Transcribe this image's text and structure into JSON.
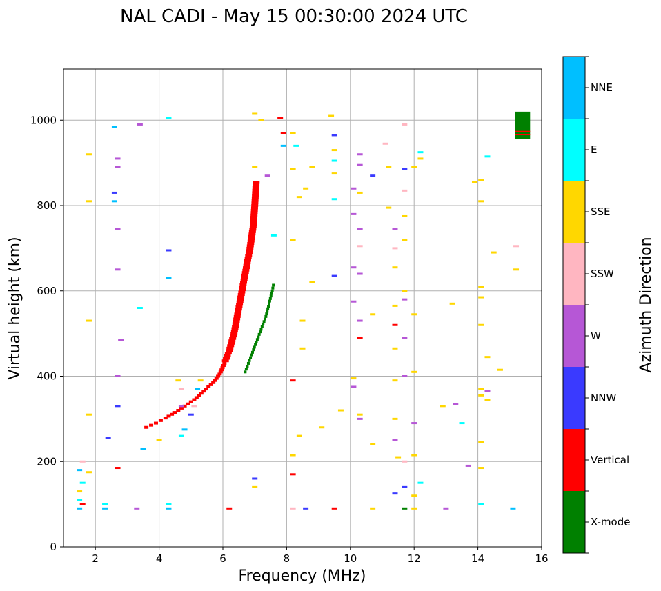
{
  "chart_data": {
    "type": "scatter",
    "title": "NAL CADI - May 15 00:30:00 2024 UTC",
    "xlabel": "Frequency (MHz)",
    "ylabel": "Virtual height (km)",
    "xlim": [
      1,
      16
    ],
    "ylim": [
      0,
      1120
    ],
    "xticks": [
      2,
      4,
      6,
      8,
      10,
      12,
      14,
      16
    ],
    "yticks": [
      0,
      200,
      400,
      600,
      800,
      1000
    ],
    "grid": true,
    "colorbar": {
      "label": "Azimuth Direction",
      "categories": [
        {
          "name": "X-mode",
          "color": "#008000"
        },
        {
          "name": "Vertical",
          "color": "#ff0000"
        },
        {
          "name": "NNW",
          "color": "#3a3aff"
        },
        {
          "name": "W",
          "color": "#b657d6"
        },
        {
          "name": "SSW",
          "color": "#ffb6c1"
        },
        {
          "name": "SSE",
          "color": "#ffd700"
        },
        {
          "name": "E",
          "color": "#00ffff"
        },
        {
          "name": "NNE",
          "color": "#00bfff"
        }
      ]
    },
    "trace_vertical": [
      [
        3.6,
        280
      ],
      [
        3.9,
        290
      ],
      [
        4.2,
        302
      ],
      [
        4.5,
        315
      ],
      [
        4.8,
        330
      ],
      [
        5.1,
        345
      ],
      [
        5.4,
        365
      ],
      [
        5.7,
        385
      ],
      [
        5.9,
        405
      ],
      [
        6.05,
        430
      ],
      [
        6.2,
        460
      ],
      [
        6.35,
        500
      ],
      [
        6.45,
        540
      ],
      [
        6.55,
        580
      ],
      [
        6.65,
        620
      ],
      [
        6.75,
        660
      ],
      [
        6.85,
        700
      ],
      [
        6.95,
        750
      ],
      [
        7.0,
        800
      ],
      [
        7.05,
        860
      ]
    ],
    "trace_xmode": [
      [
        6.7,
        410
      ],
      [
        6.9,
        450
      ],
      [
        7.05,
        480
      ],
      [
        7.2,
        510
      ],
      [
        7.35,
        540
      ],
      [
        7.45,
        570
      ],
      [
        7.55,
        600
      ],
      [
        7.6,
        620
      ]
    ],
    "scattered_points": [
      [
        1.5,
        90,
        "NNE"
      ],
      [
        1.5,
        110,
        "E"
      ],
      [
        1.5,
        130,
        "SSE"
      ],
      [
        1.6,
        150,
        "E"
      ],
      [
        1.6,
        100,
        "Vertical"
      ],
      [
        1.5,
        180,
        "NNE"
      ],
      [
        1.6,
        200,
        "SSW"
      ],
      [
        1.8,
        175,
        "SSE"
      ],
      [
        1.8,
        310,
        "SSE"
      ],
      [
        1.8,
        530,
        "SSE"
      ],
      [
        1.8,
        810,
        "SSE"
      ],
      [
        1.8,
        920,
        "SSE"
      ],
      [
        2.3,
        90,
        "NNE"
      ],
      [
        2.3,
        100,
        "E"
      ],
      [
        2.4,
        255,
        "NNW"
      ],
      [
        2.6,
        830,
        "NNW"
      ],
      [
        2.6,
        810,
        "NNE"
      ],
      [
        2.6,
        985,
        "NNE"
      ],
      [
        2.7,
        910,
        "W"
      ],
      [
        2.7,
        890,
        "W"
      ],
      [
        2.7,
        650,
        "W"
      ],
      [
        2.7,
        745,
        "W"
      ],
      [
        2.8,
        485,
        "W"
      ],
      [
        2.7,
        400,
        "W"
      ],
      [
        2.7,
        330,
        "NNW"
      ],
      [
        2.7,
        185,
        "Vertical"
      ],
      [
        3.3,
        90,
        "W"
      ],
      [
        3.4,
        560,
        "E"
      ],
      [
        3.4,
        990,
        "W"
      ],
      [
        3.5,
        230,
        "NNE"
      ],
      [
        4.0,
        250,
        "SSE"
      ],
      [
        4.3,
        100,
        "E"
      ],
      [
        4.3,
        90,
        "NNE"
      ],
      [
        4.3,
        630,
        "NNE"
      ],
      [
        4.3,
        695,
        "NNW"
      ],
      [
        4.3,
        1005,
        "E"
      ],
      [
        4.6,
        390,
        "SSE"
      ],
      [
        4.7,
        370,
        "SSW"
      ],
      [
        4.7,
        330,
        "W"
      ],
      [
        4.7,
        260,
        "E"
      ],
      [
        4.8,
        275,
        "NNE"
      ],
      [
        5.0,
        310,
        "NNW"
      ],
      [
        5.1,
        330,
        "SSW"
      ],
      [
        5.2,
        370,
        "NNE"
      ],
      [
        5.3,
        390,
        "SSE"
      ],
      [
        6.2,
        90,
        "Vertical"
      ],
      [
        7.0,
        140,
        "SSE"
      ],
      [
        7.0,
        160,
        "NNW"
      ],
      [
        7.0,
        890,
        "SSE"
      ],
      [
        7.0,
        1015,
        "SSE"
      ],
      [
        7.2,
        1000,
        "SSE"
      ],
      [
        7.4,
        870,
        "W"
      ],
      [
        7.6,
        730,
        "E"
      ],
      [
        7.8,
        1005,
        "Vertical"
      ],
      [
        7.9,
        970,
        "Vertical"
      ],
      [
        7.9,
        940,
        "NNE"
      ],
      [
        8.2,
        970,
        "SSE"
      ],
      [
        8.2,
        885,
        "SSE"
      ],
      [
        8.3,
        940,
        "E"
      ],
      [
        8.4,
        820,
        "SSE"
      ],
      [
        8.5,
        465,
        "SSE"
      ],
      [
        8.5,
        530,
        "SSE"
      ],
      [
        8.6,
        840,
        "SSE"
      ],
      [
        8.2,
        720,
        "SSE"
      ],
      [
        8.2,
        390,
        "Vertical"
      ],
      [
        8.2,
        170,
        "Vertical"
      ],
      [
        8.2,
        215,
        "SSE"
      ],
      [
        8.4,
        260,
        "SSE"
      ],
      [
        8.8,
        620,
        "SSE"
      ],
      [
        8.8,
        890,
        "SSE"
      ],
      [
        9.1,
        280,
        "SSE"
      ],
      [
        9.4,
        1010,
        "SSE"
      ],
      [
        9.5,
        965,
        "NNW"
      ],
      [
        9.5,
        930,
        "SSE"
      ],
      [
        9.5,
        905,
        "E"
      ],
      [
        9.5,
        875,
        "SSE"
      ],
      [
        9.5,
        635,
        "NNW"
      ],
      [
        9.5,
        815,
        "E"
      ],
      [
        9.5,
        90,
        "Vertical"
      ],
      [
        9.7,
        320,
        "SSE"
      ],
      [
        8.6,
        90,
        "NNW"
      ],
      [
        8.2,
        90,
        "SSW"
      ],
      [
        10.1,
        840,
        "W"
      ],
      [
        10.1,
        780,
        "W"
      ],
      [
        10.1,
        655,
        "W"
      ],
      [
        10.1,
        575,
        "W"
      ],
      [
        10.1,
        395,
        "SSE"
      ],
      [
        10.1,
        375,
        "W"
      ],
      [
        10.3,
        920,
        "W"
      ],
      [
        10.3,
        895,
        "W"
      ],
      [
        10.3,
        830,
        "SSE"
      ],
      [
        10.3,
        745,
        "W"
      ],
      [
        10.3,
        705,
        "SSW"
      ],
      [
        10.3,
        640,
        "W"
      ],
      [
        10.3,
        530,
        "W"
      ],
      [
        10.3,
        490,
        "Vertical"
      ],
      [
        10.3,
        310,
        "SSE"
      ],
      [
        10.3,
        300,
        "W"
      ],
      [
        10.7,
        870,
        "NNW"
      ],
      [
        10.7,
        545,
        "SSE"
      ],
      [
        10.7,
        240,
        "SSE"
      ],
      [
        10.7,
        90,
        "SSE"
      ],
      [
        11.1,
        945,
        "SSW"
      ],
      [
        11.2,
        890,
        "SSE"
      ],
      [
        11.2,
        795,
        "SSE"
      ],
      [
        11.4,
        745,
        "W"
      ],
      [
        11.4,
        700,
        "SSW"
      ],
      [
        11.4,
        655,
        "SSE"
      ],
      [
        11.4,
        565,
        "SSE"
      ],
      [
        11.4,
        520,
        "Vertical"
      ],
      [
        11.4,
        465,
        "SSE"
      ],
      [
        11.4,
        390,
        "SSE"
      ],
      [
        11.4,
        300,
        "SSE"
      ],
      [
        11.4,
        250,
        "W"
      ],
      [
        11.5,
        210,
        "SSE"
      ],
      [
        11.4,
        125,
        "NNW"
      ],
      [
        11.7,
        990,
        "SSW"
      ],
      [
        11.7,
        885,
        "NNW"
      ],
      [
        11.7,
        835,
        "SSW"
      ],
      [
        11.7,
        775,
        "SSE"
      ],
      [
        11.7,
        720,
        "SSE"
      ],
      [
        11.7,
        600,
        "SSE"
      ],
      [
        11.7,
        580,
        "W"
      ],
      [
        11.7,
        490,
        "W"
      ],
      [
        11.7,
        400,
        "W"
      ],
      [
        11.7,
        200,
        "SSW"
      ],
      [
        11.7,
        140,
        "NNW"
      ],
      [
        11.7,
        90,
        "X-mode"
      ],
      [
        12.0,
        90,
        "SSE"
      ],
      [
        12.0,
        120,
        "SSE"
      ],
      [
        12.0,
        215,
        "SSE"
      ],
      [
        12.0,
        290,
        "W"
      ],
      [
        12.0,
        410,
        "SSE"
      ],
      [
        12.0,
        545,
        "SSE"
      ],
      [
        12.0,
        890,
        "SSE"
      ],
      [
        12.2,
        925,
        "E"
      ],
      [
        12.2,
        910,
        "SSE"
      ],
      [
        12.2,
        150,
        "E"
      ],
      [
        12.9,
        330,
        "SSE"
      ],
      [
        13.0,
        90,
        "W"
      ],
      [
        13.2,
        570,
        "SSE"
      ],
      [
        13.3,
        335,
        "W"
      ],
      [
        13.5,
        290,
        "E"
      ],
      [
        13.7,
        190,
        "W"
      ],
      [
        13.9,
        855,
        "SSE"
      ],
      [
        14.1,
        860,
        "SSE"
      ],
      [
        14.1,
        810,
        "SSE"
      ],
      [
        14.1,
        610,
        "SSE"
      ],
      [
        14.1,
        585,
        "SSE"
      ],
      [
        14.1,
        520,
        "SSE"
      ],
      [
        14.1,
        370,
        "SSE"
      ],
      [
        14.1,
        355,
        "SSE"
      ],
      [
        14.1,
        245,
        "SSE"
      ],
      [
        14.1,
        185,
        "SSE"
      ],
      [
        14.1,
        100,
        "E"
      ],
      [
        14.3,
        915,
        "E"
      ],
      [
        14.3,
        445,
        "SSE"
      ],
      [
        14.3,
        365,
        "W"
      ],
      [
        14.3,
        345,
        "SSE"
      ],
      [
        14.5,
        690,
        "SSE"
      ],
      [
        14.7,
        415,
        "SSE"
      ],
      [
        15.1,
        90,
        "NNE"
      ],
      [
        15.2,
        705,
        "SSW"
      ],
      [
        15.2,
        650,
        "SSE"
      ]
    ],
    "marker_block": [
      15.4,
      990,
      "X-mode"
    ]
  }
}
